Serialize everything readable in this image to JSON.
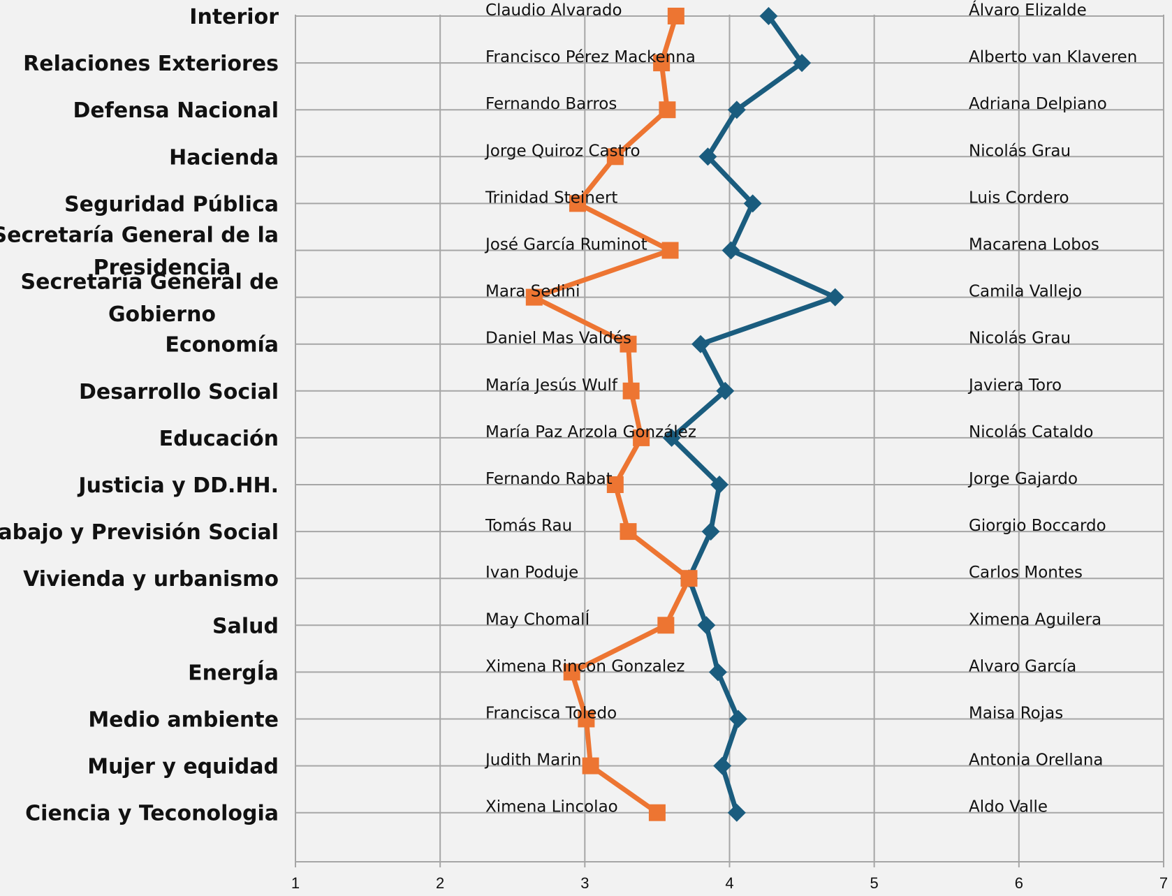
{
  "chart_data": {
    "type": "line",
    "orientation": "horizontal",
    "title": "",
    "xlabel": "",
    "ylabel": "",
    "xlim": [
      1,
      7
    ],
    "x_ticks": [
      1,
      2,
      3,
      4,
      5,
      6,
      7
    ],
    "grid": true,
    "legend": "none",
    "categories": [
      "Interior",
      "Relaciones Exteriores",
      "Defensa Nacional",
      "Hacienda",
      "Seguridad Pública",
      "Secretaría General de la Presidencia",
      "Secretaría General de Gobierno",
      "Economía",
      "Desarrollo Social",
      "Educación",
      "Justicia y DD.HH.",
      "Trabajo y Previsión Social",
      "Vivienda y urbanismo",
      "Salud",
      "EnergÍa",
      "Medio ambiente",
      "Mujer y equidad",
      "Ciencia y Teconologia"
    ],
    "series": [
      {
        "color": "#1a5c7e",
        "marker": "diamond",
        "values": [
          4.27,
          4.5,
          4.05,
          3.85,
          4.16,
          4.01,
          4.73,
          3.8,
          3.97,
          3.6,
          3.93,
          3.87,
          3.72,
          3.84,
          3.92,
          4.06,
          3.95,
          4.05
        ],
        "labels": [
          "Álvaro Elizalde",
          "Alberto van Klaveren",
          "Adriana Delpiano",
          "Nicolás Grau",
          "Luis Cordero",
          "Macarena Lobos",
          "Camila Vallejo",
          "Nicolás Grau",
          "Javiera Toro",
          "Nicolás Cataldo",
          "Jorge Gajardo",
          "Giorgio Boccardo",
          "Carlos Montes",
          "Ximena Aguilera",
          "Alvaro García",
          "Maisa Rojas",
          "Antonia Orellana",
          "Aldo Valle"
        ]
      },
      {
        "color": "#ed7532",
        "marker": "square",
        "values": [
          3.63,
          3.53,
          3.57,
          3.21,
          2.95,
          3.59,
          2.65,
          3.3,
          3.32,
          3.39,
          3.21,
          3.3,
          3.72,
          3.56,
          2.91,
          3.01,
          3.04,
          3.5
        ],
        "labels": [
          "Claudio Alvarado",
          "Francisco Pérez Mackenna",
          "Fernando Barros",
          "Jorge Quiroz Castro",
          "Trinidad Steinert",
          "José García Ruminot",
          "Mara Sedini",
          "Daniel Mas Valdés",
          "María Jesús Wulf",
          "María Paz Arzola González",
          "Fernando Rabat",
          "Tomás Rau",
          "Ivan Poduje",
          "May ChomalÍ",
          "Ximena Rincon Gonzalez",
          "Francisca Toledo",
          "Judith Marin",
          "Ximena Lincolao"
        ]
      }
    ]
  }
}
